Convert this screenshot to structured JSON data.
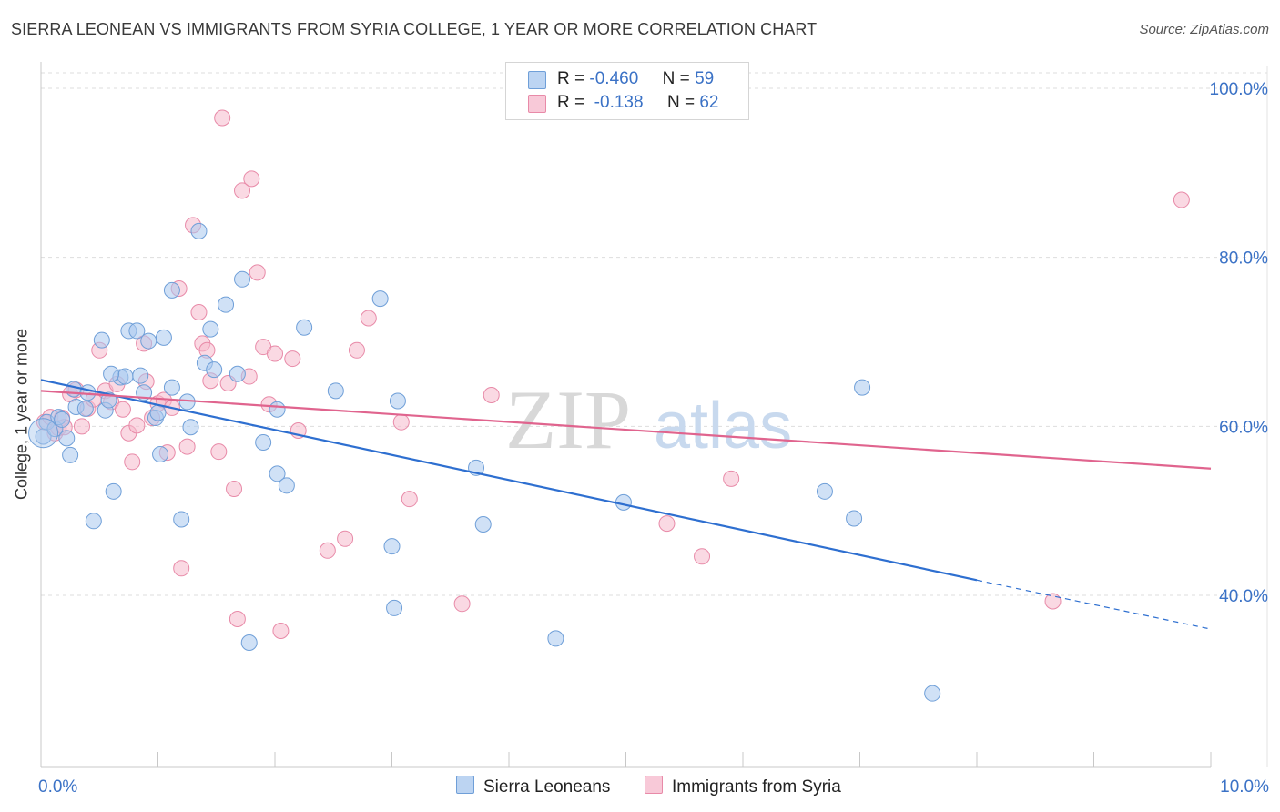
{
  "title": "SIERRA LEONEAN VS IMMIGRANTS FROM SYRIA COLLEGE, 1 YEAR OR MORE CORRELATION CHART",
  "source": "Source: ZipAtlas.com",
  "watermark": {
    "zip": "ZIP",
    "atlas": "atlas"
  },
  "legend": {
    "rows": [
      {
        "r_label": "R =",
        "r_value": "-0.460",
        "n_label": "N =",
        "n_value": "59"
      },
      {
        "r_label": "R =",
        "r_value": "-0.138",
        "n_label": "N =",
        "n_value": "62"
      }
    ]
  },
  "bottom_legend": {
    "series1": "Sierra Leoneans",
    "series2": "Immigrants from Syria"
  },
  "chart_data": {
    "type": "scatter",
    "ylabel": "College, 1 year or more",
    "xlim": [
      0,
      10
    ],
    "ylim": [
      20,
      103
    ],
    "x_tick_labels": [
      "0.0%",
      "10.0%"
    ],
    "y_tick_labels": [
      "100.0%",
      "80.0%",
      "60.0%",
      "40.0%"
    ],
    "y_ticks": [
      100,
      80,
      60,
      40
    ],
    "grid": true,
    "colors": {
      "series1_fill": "#a9c8ee",
      "series1_stroke": "#6f9fd8",
      "series1_line": "#2e6fd0",
      "series2_fill": "#f6b9cc",
      "series2_stroke": "#e88aa8",
      "series2_line": "#e0648e",
      "axis_label": "#3b72c6",
      "grid": "#dddddd"
    },
    "series": [
      {
        "name": "Sierra Leoneans",
        "trend": {
          "x": [
            0,
            8.0
          ],
          "y": [
            65.5,
            41.8
          ],
          "dash_to": [
            10.0,
            36.0
          ]
        },
        "points": [
          [
            0.02,
            58.8
          ],
          [
            0.05,
            60.5
          ],
          [
            0.12,
            59.7
          ],
          [
            0.15,
            61.1
          ],
          [
            0.18,
            60.8
          ],
          [
            0.22,
            58.6
          ],
          [
            0.25,
            56.6
          ],
          [
            0.28,
            64.4
          ],
          [
            0.3,
            62.3
          ],
          [
            0.38,
            62.1
          ],
          [
            0.4,
            64.0
          ],
          [
            0.45,
            48.8
          ],
          [
            0.52,
            70.2
          ],
          [
            0.55,
            61.9
          ],
          [
            0.58,
            63.1
          ],
          [
            0.62,
            52.3
          ],
          [
            0.68,
            65.8
          ],
          [
            0.72,
            65.9
          ],
          [
            0.75,
            71.3
          ],
          [
            0.82,
            71.3
          ],
          [
            0.85,
            66.0
          ],
          [
            0.88,
            64.0
          ],
          [
            0.92,
            70.1
          ],
          [
            0.98,
            61.0
          ],
          [
            1.0,
            61.6
          ],
          [
            1.02,
            56.7
          ],
          [
            1.05,
            70.5
          ],
          [
            1.12,
            64.6
          ],
          [
            1.12,
            76.1
          ],
          [
            1.2,
            49.0
          ],
          [
            1.25,
            62.9
          ],
          [
            1.28,
            59.9
          ],
          [
            1.35,
            83.1
          ],
          [
            1.4,
            67.5
          ],
          [
            1.45,
            71.5
          ],
          [
            1.48,
            66.7
          ],
          [
            1.58,
            74.4
          ],
          [
            1.68,
            66.2
          ],
          [
            1.72,
            77.4
          ],
          [
            1.78,
            34.4
          ],
          [
            1.9,
            58.1
          ],
          [
            2.02,
            62.0
          ],
          [
            2.02,
            54.4
          ],
          [
            2.1,
            53.0
          ],
          [
            2.25,
            71.7
          ],
          [
            2.52,
            64.2
          ],
          [
            2.9,
            75.1
          ],
          [
            3.0,
            45.8
          ],
          [
            3.02,
            38.5
          ],
          [
            3.05,
            63.0
          ],
          [
            3.72,
            55.1
          ],
          [
            3.78,
            48.4
          ],
          [
            4.4,
            34.9
          ],
          [
            4.98,
            51.0
          ],
          [
            6.7,
            52.3
          ],
          [
            6.95,
            49.1
          ],
          [
            7.02,
            64.6
          ],
          [
            7.62,
            28.4
          ],
          [
            0.6,
            66.2
          ]
        ]
      },
      {
        "name": "Immigrants from Syria",
        "trend": {
          "x": [
            0,
            10.0
          ],
          "y": [
            64.2,
            55.0
          ]
        },
        "points": [
          [
            0.03,
            60.5
          ],
          [
            0.08,
            61.1
          ],
          [
            0.12,
            59.2
          ],
          [
            0.15,
            59.8
          ],
          [
            0.18,
            61.0
          ],
          [
            0.2,
            59.9
          ],
          [
            0.25,
            63.8
          ],
          [
            0.3,
            64.3
          ],
          [
            0.35,
            60.0
          ],
          [
            0.4,
            62.1
          ],
          [
            0.45,
            63.2
          ],
          [
            0.5,
            69.0
          ],
          [
            0.55,
            64.2
          ],
          [
            0.6,
            62.9
          ],
          [
            0.65,
            65.0
          ],
          [
            0.7,
            62.0
          ],
          [
            0.75,
            59.2
          ],
          [
            0.78,
            55.8
          ],
          [
            0.82,
            60.1
          ],
          [
            0.88,
            69.8
          ],
          [
            0.9,
            65.3
          ],
          [
            0.95,
            61.0
          ],
          [
            1.0,
            62.7
          ],
          [
            1.05,
            63.1
          ],
          [
            1.08,
            56.9
          ],
          [
            1.12,
            62.2
          ],
          [
            1.18,
            76.3
          ],
          [
            1.2,
            43.2
          ],
          [
            1.25,
            57.6
          ],
          [
            1.3,
            83.8
          ],
          [
            1.35,
            73.5
          ],
          [
            1.38,
            69.8
          ],
          [
            1.42,
            69.0
          ],
          [
            1.45,
            65.4
          ],
          [
            1.52,
            57.0
          ],
          [
            1.55,
            96.5
          ],
          [
            1.6,
            65.1
          ],
          [
            1.65,
            52.6
          ],
          [
            1.68,
            37.2
          ],
          [
            1.72,
            87.9
          ],
          [
            1.78,
            65.9
          ],
          [
            1.8,
            89.3
          ],
          [
            1.85,
            78.2
          ],
          [
            1.9,
            69.4
          ],
          [
            1.95,
            62.6
          ],
          [
            2.0,
            68.6
          ],
          [
            2.05,
            35.8
          ],
          [
            2.15,
            68.0
          ],
          [
            2.2,
            59.5
          ],
          [
            2.45,
            45.3
          ],
          [
            2.6,
            46.7
          ],
          [
            2.7,
            69.0
          ],
          [
            2.8,
            72.8
          ],
          [
            3.08,
            60.5
          ],
          [
            3.15,
            51.4
          ],
          [
            3.6,
            39.0
          ],
          [
            3.85,
            63.7
          ],
          [
            5.35,
            48.5
          ],
          [
            5.65,
            44.6
          ],
          [
            5.9,
            53.8
          ],
          [
            8.65,
            39.3
          ],
          [
            9.75,
            86.8
          ]
        ]
      }
    ]
  }
}
